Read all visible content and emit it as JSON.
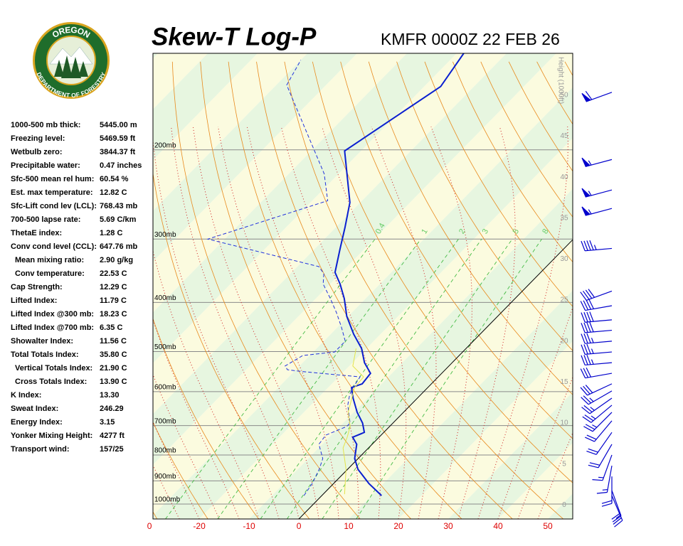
{
  "logo": {
    "top": "OREGON",
    "bottom": "DEPARTMENT OF FORESTRY"
  },
  "stats": [
    {
      "label": "1000-500 mb thick:",
      "value": "5445.00 m"
    },
    {
      "label": "Freezing level:",
      "value": "5469.59 ft"
    },
    {
      "label": "Wetbulb zero:",
      "value": "3844.37 ft"
    },
    {
      "label": "Precipitable water:",
      "value": "0.47 inches"
    },
    {
      "label": "Sfc-500 mean rel hum:",
      "value": "60.54 %"
    },
    {
      "label": "Est. max temperature:",
      "value": "12.82 C"
    },
    {
      "label": "Sfc-Lift cond lev (LCL):",
      "value": "768.43 mb"
    },
    {
      "label": "700-500 lapse rate:",
      "value": "5.69 C/km"
    },
    {
      "label": "ThetaE index:",
      "value": "1.28 C"
    },
    {
      "label": "Conv cond level (CCL):",
      "value": "647.76 mb"
    },
    {
      "label": "Mean mixing ratio:",
      "value": "2.90 g/kg",
      "sub": true
    },
    {
      "label": "Conv temperature:",
      "value": "22.53 C",
      "sub": true
    },
    {
      "label": "Cap Strength:",
      "value": "12.29 C"
    },
    {
      "label": "Lifted Index:",
      "value": "11.79 C"
    },
    {
      "label": "Lifted Index @300 mb:",
      "value": "18.23 C"
    },
    {
      "label": "Lifted Index @700 mb:",
      "value": "6.35 C"
    },
    {
      "label": "Showalter Index:",
      "value": "11.56 C"
    },
    {
      "label": "Total Totals Index:",
      "value": "35.80 C"
    },
    {
      "label": "Vertical Totals Index:",
      "value": "21.90 C",
      "sub": true
    },
    {
      "label": "Cross Totals Index:",
      "value": "13.90 C",
      "sub": true
    },
    {
      "label": "K Index:",
      "value": "13.30"
    },
    {
      "label": "Sweat Index:",
      "value": "246.29"
    },
    {
      "label": "Energy Index:",
      "value": "3.15"
    },
    {
      "label": "Yonker Mixing Height:",
      "value": "4277 ft"
    },
    {
      "label": "Transport wind:",
      "value": "157/25"
    }
  ],
  "chart_data": {
    "type": "skewt",
    "title": "Skew-T Log-P",
    "subtitle": "KMFR 0000Z 22 FEB 26",
    "log_y": true,
    "ylim": [
      1070,
      129
    ],
    "yticks": [
      {
        "value": 200,
        "label": "200mb"
      },
      {
        "value": 300,
        "label": "300mb"
      },
      {
        "value": 400,
        "label": "400mb"
      },
      {
        "value": 500,
        "label": "500mb"
      },
      {
        "value": 600,
        "label": "600mb"
      },
      {
        "value": 700,
        "label": "700mb"
      },
      {
        "value": 800,
        "label": "800mb"
      },
      {
        "value": 900,
        "label": "900mb"
      },
      {
        "value": 1000,
        "label": "1000mb"
      }
    ],
    "xlim": [
      -29.3,
      55
    ],
    "xticks": [
      {
        "value": -30,
        "label": "0"
      },
      -20,
      -10,
      0,
      10,
      20,
      30,
      40,
      50
    ],
    "y2_label": "Height (1000ft)",
    "y2lim": [
      -1.7,
      55.1
    ],
    "y2ticks": [
      0,
      5,
      10,
      15,
      20,
      25,
      30,
      35,
      40,
      45,
      50
    ],
    "mixing_ratios": [
      0.4,
      1,
      2,
      3,
      5,
      8
    ],
    "series": [
      {
        "color": "#0a1fd0",
        "line_style": "solid",
        "line_width": 2,
        "x": [
          12.0,
          7.1,
          2.1,
          -0.7,
          -3.1,
          -5.3,
          -3.9,
          -6.1,
          -9.3,
          -12.9,
          -15.3,
          -13.9,
          -14.3,
          -17.6,
          -21.0,
          -25.4,
          -30.3,
          -34.3,
          -38.0,
          -41.3,
          -45.0,
          -48.1,
          -52.1,
          -63.3,
          -56.7,
          -58.6
        ],
        "values": [
          962,
          911,
          854,
          813,
          762,
          738,
          722,
          692,
          659,
          618,
          589,
          579,
          552,
          526,
          493,
          462,
          426,
          393,
          368,
          349,
          313,
          285,
          254,
          201,
          150,
          129
        ]
      },
      {
        "color": "#2233dd",
        "line_style": "dashed",
        "line_width": 1,
        "x": [
          -3.6,
          -4.3,
          -5.7,
          -7.1,
          -10.7,
          -11.1,
          -10.3,
          -8.6,
          -8.6,
          -12.6,
          -14.3,
          -15.0,
          -15.7,
          -24.3,
          -29.7,
          -31.7,
          -32.9,
          -31.4,
          -25.7,
          -25.7,
          -29.3,
          -33.1,
          -37.1,
          -41.4,
          -43.3,
          -45.7,
          -73.4,
          -56.9,
          -62.9,
          -87.9,
          -90.0
        ],
        "values": [
          962,
          911,
          854,
          813,
          762,
          731,
          722,
          703,
          692,
          638,
          608,
          589,
          561,
          552,
          546,
          543,
          534,
          509,
          501,
          477,
          447,
          419,
          393,
          368,
          351,
          340,
          300,
          252,
          223,
          149,
          133
        ]
      },
      {
        "color": "#e4e44a",
        "line_style": "solid",
        "line_width": 1,
        "x": [
          4.3,
          -0.3,
          -5.1,
          -6.4,
          -7.9,
          -11.1,
          -14.7,
          -15.0,
          -19.3,
          -22.1
        ],
        "values": [
          956,
          854,
          775,
          738,
          703,
          659,
          589,
          561,
          534,
          493
        ]
      }
    ],
    "winds": {
      "pressure": [
        154,
        209,
        240,
        261,
        313,
        380,
        406,
        433,
        454,
        477,
        501,
        526,
        552,
        579,
        598,
        618,
        638,
        659,
        685,
        722,
        762,
        800,
        840,
        882,
        940,
        962
      ],
      "direction": [
        250,
        255,
        255,
        255,
        265,
        250,
        260,
        265,
        265,
        265,
        265,
        265,
        260,
        245,
        240,
        235,
        230,
        225,
        220,
        215,
        210,
        200,
        190,
        180,
        160,
        157
      ],
      "speed": [
        60,
        55,
        55,
        55,
        45,
        40,
        40,
        40,
        40,
        35,
        35,
        35,
        30,
        30,
        25,
        25,
        25,
        25,
        20,
        20,
        20,
        15,
        15,
        20,
        20,
        25
      ],
      "color": "#0000cc"
    }
  }
}
